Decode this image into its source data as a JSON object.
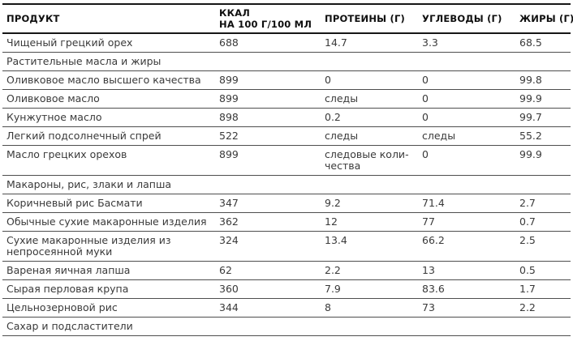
{
  "page": {
    "background": "#ffffff",
    "rule_heavy_color": "#161616",
    "rule_light_color": "#4e4e4e",
    "header_text_color": "#0f0f0f",
    "body_text_color": "#3a3a3a"
  },
  "table": {
    "columns": [
      {
        "key": "product",
        "label": "ПРОДУКТ"
      },
      {
        "key": "kcal",
        "line1": "ККАЛ",
        "line2": "НА 100 Г/100 МЛ"
      },
      {
        "key": "protein",
        "label": "ПРОТЕИНЫ (Г)"
      },
      {
        "key": "carbs",
        "label": "УГЛЕВОДЫ (Г)"
      },
      {
        "key": "fat",
        "label": "ЖИРЫ (Г)"
      }
    ],
    "rows": [
      {
        "type": "item",
        "product": "Чищеный грецкий орех",
        "kcal": "688",
        "protein": "14.7",
        "carbs": "3.3",
        "fat": "68.5"
      },
      {
        "type": "section",
        "title": "Растительные масла и жиры"
      },
      {
        "type": "item",
        "product": "Оливковое масло высшего качества",
        "kcal": "899",
        "protein": "0",
        "carbs": "0",
        "fat": "99.8"
      },
      {
        "type": "item",
        "product": "Оливковое масло",
        "kcal": "899",
        "protein": "следы",
        "carbs": "0",
        "fat": "99.9"
      },
      {
        "type": "item",
        "product": "Кунжутное масло",
        "kcal": "898",
        "protein": "0.2",
        "carbs": "0",
        "fat": "99.7"
      },
      {
        "type": "item",
        "product": "Легкий подсолнечный спрей",
        "kcal": "522",
        "protein": "следы",
        "carbs": "следы",
        "fat": "55.2"
      },
      {
        "type": "item",
        "product": "Масло грецких орехов",
        "kcal": "899",
        "protein": "следовые коли­чества",
        "carbs": "0",
        "fat": "99.9"
      },
      {
        "type": "section",
        "title": "Макароны, рис, злаки и лапша"
      },
      {
        "type": "item",
        "product": "Коричневый рис Басмати",
        "kcal": "347",
        "protein": "9.2",
        "carbs": "71.4",
        "fat": "2.7"
      },
      {
        "type": "item",
        "product": "Обычные сухие макаронные изделия",
        "kcal": "362",
        "protein": "12",
        "carbs": "77",
        "fat": "0.7"
      },
      {
        "type": "item",
        "product": "Сухие макаронные изделия из непросе­янной муки",
        "kcal": "324",
        "protein": "13.4",
        "carbs": "66.2",
        "fat": "2.5"
      },
      {
        "type": "item",
        "product": "Вареная яичная лапша",
        "kcal": "62",
        "protein": "2.2",
        "carbs": "13",
        "fat": "0.5"
      },
      {
        "type": "item",
        "product": "Сырая перловая крупа",
        "kcal": "360",
        "protein": "7.9",
        "carbs": "83.6",
        "fat": "1.7"
      },
      {
        "type": "item",
        "product": "Цельнозерновой рис",
        "kcal": "344",
        "protein": "8",
        "carbs": "73",
        "fat": "2.2"
      },
      {
        "type": "section",
        "title": "Сахар и подсластители"
      }
    ]
  }
}
